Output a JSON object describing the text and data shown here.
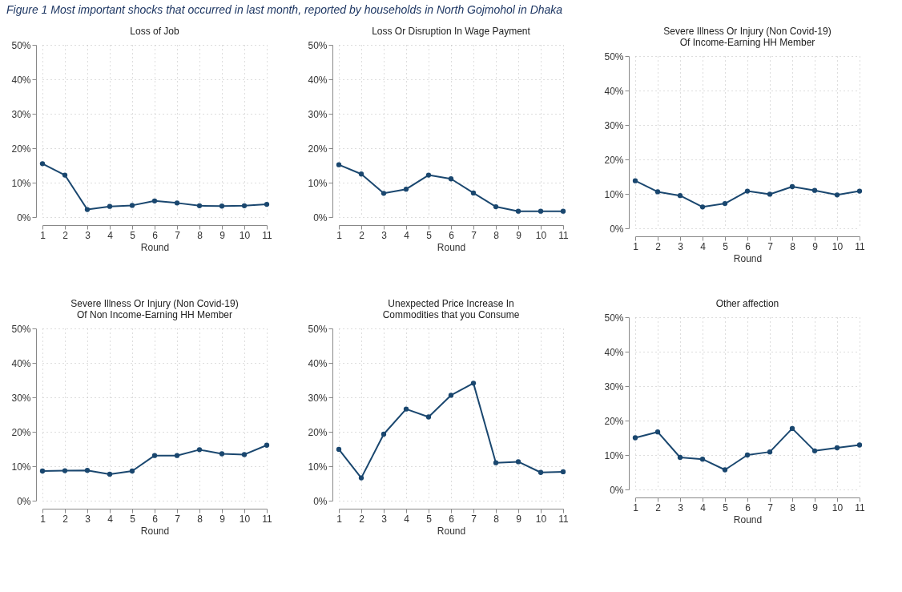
{
  "chart_data": [
    {
      "type": "line",
      "title": "Loss of Job",
      "annotations": [
        "Figure 1 Most important shocks that occurred in last month, reported by households in North Gojmohol in Dhaka"
      ],
      "xlabel": "Round",
      "x": [
        1,
        2,
        3,
        4,
        5,
        6,
        7,
        8,
        9,
        10,
        11
      ],
      "xlim": [
        1,
        11
      ],
      "xticks": [
        1,
        2,
        3,
        4,
        5,
        6,
        7,
        8,
        9,
        10,
        11
      ],
      "ylim": [
        0,
        50
      ],
      "yticks": [
        {
          "value": 0,
          "label": "0%"
        },
        {
          "value": 10,
          "label": "10%"
        },
        {
          "value": 20,
          "label": "20%"
        },
        {
          "value": 30,
          "label": "30%"
        },
        {
          "value": 40,
          "label": "40%"
        },
        {
          "value": 50,
          "label": "50%"
        }
      ],
      "grid": true,
      "marker": "circle",
      "line_style": "solid",
      "series": [
        {
          "color": "#1a476f",
          "values": [
            15.5,
            12.2,
            2.2,
            3.1,
            3.4,
            4.7,
            4.1,
            3.3,
            3.2,
            3.3,
            3.7
          ]
        }
      ]
    },
    {
      "type": "line",
      "title": "Loss Or Disruption In Wage Payment",
      "xlabel": "Round",
      "x": [
        1,
        2,
        3,
        4,
        5,
        6,
        7,
        8,
        9,
        10,
        11
      ],
      "xlim": [
        1,
        11
      ],
      "xticks": [
        1,
        2,
        3,
        4,
        5,
        6,
        7,
        8,
        9,
        10,
        11
      ],
      "ylim": [
        0,
        50
      ],
      "yticks": [
        {
          "value": 0,
          "label": "0%"
        },
        {
          "value": 10,
          "label": "10%"
        },
        {
          "value": 20,
          "label": "20%"
        },
        {
          "value": 30,
          "label": "30%"
        },
        {
          "value": 40,
          "label": "40%"
        },
        {
          "value": 50,
          "label": "50%"
        }
      ],
      "grid": true,
      "marker": "circle",
      "line_style": "solid",
      "series": [
        {
          "color": "#1a476f",
          "values": [
            15.2,
            12.5,
            6.9,
            8.1,
            12.2,
            11.1,
            7.0,
            3.0,
            1.7,
            1.7,
            1.7
          ]
        }
      ]
    },
    {
      "type": "line",
      "title": "Severe Illness Or Injury (Non Covid-19)\nOf Income-Earning HH Member",
      "xlabel": "Round",
      "x": [
        1,
        2,
        3,
        4,
        5,
        6,
        7,
        8,
        9,
        10,
        11
      ],
      "xlim": [
        1,
        11
      ],
      "xticks": [
        1,
        2,
        3,
        4,
        5,
        6,
        7,
        8,
        9,
        10,
        11
      ],
      "ylim": [
        0,
        50
      ],
      "yticks": [
        {
          "value": 0,
          "label": "0%"
        },
        {
          "value": 10,
          "label": "10%"
        },
        {
          "value": 20,
          "label": "20%"
        },
        {
          "value": 30,
          "label": "30%"
        },
        {
          "value": 40,
          "label": "40%"
        },
        {
          "value": 50,
          "label": "50%"
        }
      ],
      "grid": true,
      "marker": "circle",
      "line_style": "solid",
      "series": [
        {
          "color": "#1a476f",
          "values": [
            13.8,
            10.6,
            9.5,
            6.2,
            7.2,
            10.8,
            9.9,
            12.1,
            11.0,
            9.7,
            10.8
          ]
        }
      ]
    },
    {
      "type": "line",
      "title": "Severe Illness Or Injury (Non Covid-19)\nOf Non Income-Earning HH Member",
      "xlabel": "Round",
      "x": [
        1,
        2,
        3,
        4,
        5,
        6,
        7,
        8,
        9,
        10,
        11
      ],
      "xlim": [
        1,
        11
      ],
      "xticks": [
        1,
        2,
        3,
        4,
        5,
        6,
        7,
        8,
        9,
        10,
        11
      ],
      "ylim": [
        0,
        50
      ],
      "yticks": [
        {
          "value": 0,
          "label": "0%"
        },
        {
          "value": 10,
          "label": "10%"
        },
        {
          "value": 20,
          "label": "20%"
        },
        {
          "value": 30,
          "label": "30%"
        },
        {
          "value": 40,
          "label": "40%"
        },
        {
          "value": 50,
          "label": "50%"
        }
      ],
      "grid": true,
      "marker": "circle",
      "line_style": "solid",
      "series": [
        {
          "color": "#1a476f",
          "values": [
            8.6,
            8.7,
            8.8,
            7.7,
            8.6,
            13.1,
            13.1,
            14.8,
            13.6,
            13.4,
            16.1
          ]
        }
      ]
    },
    {
      "type": "line",
      "title": "Unexpected Price Increase In\nCommodities that you Consume",
      "xlabel": "Round",
      "x": [
        1,
        2,
        3,
        4,
        5,
        6,
        7,
        8,
        9,
        10,
        11
      ],
      "xlim": [
        1,
        11
      ],
      "xticks": [
        1,
        2,
        3,
        4,
        5,
        6,
        7,
        8,
        9,
        10,
        11
      ],
      "ylim": [
        0,
        50
      ],
      "yticks": [
        {
          "value": 0,
          "label": "0%"
        },
        {
          "value": 10,
          "label": "10%"
        },
        {
          "value": 20,
          "label": "20%"
        },
        {
          "value": 30,
          "label": "30%"
        },
        {
          "value": 40,
          "label": "40%"
        },
        {
          "value": 50,
          "label": "50%"
        }
      ],
      "grid": true,
      "marker": "circle",
      "line_style": "solid",
      "series": [
        {
          "color": "#1a476f",
          "values": [
            14.9,
            6.6,
            19.3,
            26.6,
            24.3,
            30.6,
            34.1,
            11.0,
            11.3,
            8.2,
            8.4
          ]
        }
      ]
    },
    {
      "type": "line",
      "title": "Other affection",
      "xlabel": "Round",
      "x": [
        1,
        2,
        3,
        4,
        5,
        6,
        7,
        8,
        9,
        10,
        11
      ],
      "xlim": [
        1,
        11
      ],
      "xticks": [
        1,
        2,
        3,
        4,
        5,
        6,
        7,
        8,
        9,
        10,
        11
      ],
      "ylim": [
        0,
        50
      ],
      "yticks": [
        {
          "value": 0,
          "label": "0%"
        },
        {
          "value": 10,
          "label": "10%"
        },
        {
          "value": 20,
          "label": "20%"
        },
        {
          "value": 30,
          "label": "30%"
        },
        {
          "value": 40,
          "label": "40%"
        },
        {
          "value": 50,
          "label": "50%"
        }
      ],
      "grid": true,
      "marker": "circle",
      "line_style": "solid",
      "series": [
        {
          "color": "#1a476f",
          "values": [
            15.0,
            16.7,
            9.3,
            8.8,
            5.7,
            10.0,
            10.9,
            17.7,
            11.2,
            12.1,
            12.9
          ]
        }
      ]
    }
  ]
}
